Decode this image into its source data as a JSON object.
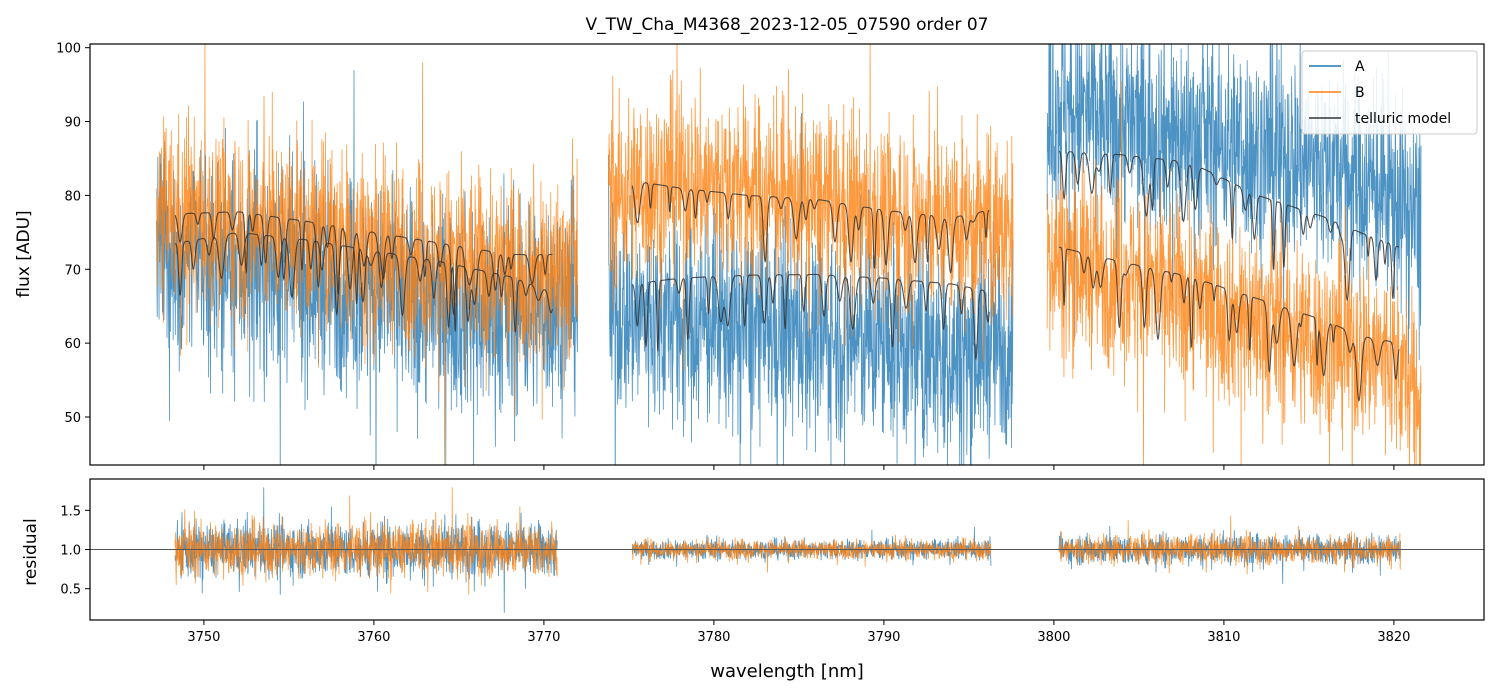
{
  "chart_data": [
    {
      "type": "line",
      "panel": "top",
      "title": "V_TW_Cha_M4368_2023-12-05_07590  order 07",
      "xlabel": "",
      "ylabel": "flux [ADU]",
      "xlim": [
        3743.3,
        3825.3
      ],
      "ylim": [
        43.5,
        100.5
      ],
      "yticks": [
        50,
        60,
        70,
        80,
        90,
        100
      ],
      "xticks": [
        3750,
        3760,
        3770,
        3780,
        3790,
        3800,
        3810,
        3820
      ],
      "legend": {
        "placement": "top-right",
        "entries": [
          "A",
          "B",
          "telluric model"
        ]
      },
      "segments": [
        {
          "x0": 3747.2,
          "x1": 3772.0
        },
        {
          "x0": 3773.8,
          "x1": 3797.6
        },
        {
          "x0": 3799.6,
          "x1": 3821.6
        }
      ],
      "series": [
        {
          "name": "A",
          "color": "#1f77b4",
          "points": [
            [
              3748,
              72
            ],
            [
              3752,
              70
            ],
            [
              3756,
              69
            ],
            [
              3760,
              67
            ],
            [
              3764,
              65
            ],
            [
              3768,
              64
            ],
            [
              3771.5,
              66
            ],
            [
              3774,
              64
            ],
            [
              3778,
              63
            ],
            [
              3782,
              62
            ],
            [
              3786,
              61
            ],
            [
              3790,
              60
            ],
            [
              3794,
              58
            ],
            [
              3797.5,
              61
            ],
            [
              3800,
              92
            ],
            [
              3804,
              90
            ],
            [
              3808,
              88
            ],
            [
              3812,
              86
            ],
            [
              3816,
              84
            ],
            [
              3820,
              80
            ],
            [
              3821.5,
              76
            ]
          ],
          "noise_amplitude": 10
        },
        {
          "name": "B",
          "color": "#ff7f0e",
          "points": [
            [
              3748,
              77
            ],
            [
              3752,
              76
            ],
            [
              3756,
              75
            ],
            [
              3760,
              73
            ],
            [
              3764,
              71
            ],
            [
              3768,
              70
            ],
            [
              3771.5,
              70
            ],
            [
              3774,
              80
            ],
            [
              3778,
              82
            ],
            [
              3782,
              81
            ],
            [
              3786,
              79
            ],
            [
              3790,
              77
            ],
            [
              3794,
              76
            ],
            [
              3797.5,
              75
            ],
            [
              3800,
              72
            ],
            [
              3804,
              69
            ],
            [
              3808,
              66
            ],
            [
              3812,
              63
            ],
            [
              3816,
              60
            ],
            [
              3820,
              58
            ],
            [
              3821.5,
              52
            ]
          ],
          "noise_amplitude": 9
        },
        {
          "name": "telluric model",
          "color": "#333333",
          "curves": [
            {
              "points": [
                [
                  3748.3,
                  77.5
                ],
                [
                  3752,
                  77.8
                ],
                [
                  3756,
                  76.5
                ],
                [
                  3760,
                  75
                ],
                [
                  3764,
                  73.5
                ],
                [
                  3768,
                  72
                ],
                [
                  3770.5,
                  72
                ]
              ]
            },
            {
              "points": [
                [
                  3748.3,
                  73.5
                ],
                [
                  3752,
                  75
                ],
                [
                  3756,
                  74
                ],
                [
                  3760,
                  72.5
                ],
                [
                  3764,
                  71
                ],
                [
                  3768,
                  69
                ],
                [
                  3770.5,
                  67
                ]
              ]
            },
            {
              "points": [
                [
                  3775.2,
                  82
                ],
                [
                  3778,
                  81
                ],
                [
                  3782,
                  80
                ],
                [
                  3786,
                  79.5
                ],
                [
                  3790,
                  78
                ],
                [
                  3794,
                  77
                ],
                [
                  3796.2,
                  78
                ]
              ]
            },
            {
              "points": [
                [
                  3775.2,
                  68
                ],
                [
                  3778,
                  68.8
                ],
                [
                  3782,
                  69.2
                ],
                [
                  3786,
                  69.3
                ],
                [
                  3790,
                  68.8
                ],
                [
                  3794,
                  68
                ],
                [
                  3796.2,
                  67
                ]
              ]
            },
            {
              "points": [
                [
                  3800.3,
                  86
                ],
                [
                  3804,
                  85.5
                ],
                [
                  3808,
                  84.5
                ],
                [
                  3812,
                  80
                ],
                [
                  3816,
                  77
                ],
                [
                  3818,
                  75
                ],
                [
                  3820.3,
                  73
                ]
              ]
            },
            {
              "points": [
                [
                  3800.3,
                  73
                ],
                [
                  3804,
                  71
                ],
                [
                  3808,
                  69
                ],
                [
                  3812,
                  66
                ],
                [
                  3816,
                  63
                ],
                [
                  3818,
                  61
                ],
                [
                  3820.3,
                  60
                ]
              ]
            }
          ]
        }
      ]
    },
    {
      "type": "line",
      "panel": "bottom",
      "xlabel": "wavelength [nm]",
      "ylabel": "residual",
      "xlim": [
        3743.3,
        3825.3
      ],
      "ylim": [
        0.1,
        1.9
      ],
      "yticks": [
        0.5,
        1.0,
        1.5
      ],
      "xticks": [
        3750,
        3760,
        3770,
        3780,
        3790,
        3800,
        3810,
        3820
      ],
      "reference_line": 1.0,
      "segments": [
        {
          "x0": 3748.3,
          "x1": 3770.8,
          "noise_amplitude": 0.55
        },
        {
          "x0": 3775.2,
          "x1": 3796.3,
          "noise_amplitude": 0.2
        },
        {
          "x0": 3800.3,
          "x1": 3820.4,
          "noise_amplitude": 0.3
        }
      ],
      "series": [
        {
          "name": "A",
          "color": "#1f77b4"
        },
        {
          "name": "B",
          "color": "#ff7f0e"
        }
      ]
    }
  ]
}
